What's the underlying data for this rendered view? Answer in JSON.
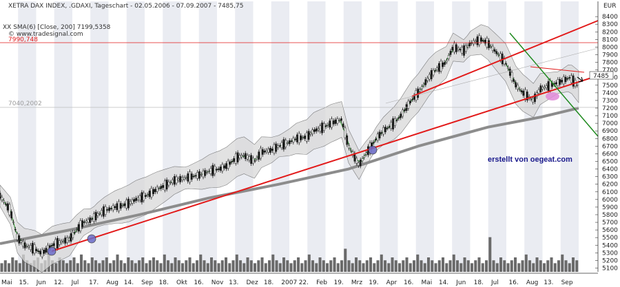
{
  "header": {
    "title": "XETRA DAX INDEX, .GDAXI, Tageschart - 02.05.2006 - 07.09.2007 - 7485,75",
    "sma_label": "XX SMA(6) [Close, 200] 7199,5358",
    "watermark": "© www.tradesignal.com",
    "currency": "EUR"
  },
  "annotations": {
    "author_note": "erstellt von oegeat.com",
    "last_price_label": "7485",
    "ref_line_high": "7990,748",
    "ref_line_low": "7040,2002"
  },
  "colors": {
    "background": "#ffffff",
    "band_stripe": "#d8dde8",
    "candle": "#1a1a1a",
    "bollinger_fill": "#d9d9d9",
    "sma6": "#1f8a1f",
    "sma200": "#8c8c8c",
    "trendline_support": "#e21a1a",
    "trendline_down": "#1f8a1f",
    "touch_marker": "#6b6bc8",
    "touch_marker_pink": "#e08ad8",
    "volume": "#6a6a6a"
  },
  "chart_data": {
    "type": "line",
    "title": "XETRA DAX INDEX, .GDAXI, Tageschart - 02.05.2006 - 07.09.2007 - 7485,75",
    "ylabel": "EUR",
    "xlabel": "",
    "ylim": [
      5050,
      8600
    ],
    "x_tick_labels": [
      "Mai",
      "15.",
      "Jun",
      "12.",
      "Jul",
      "17.",
      "Aug",
      "14.",
      "Sep",
      "18.",
      "Okt",
      "16.",
      "Nov",
      "13.",
      "Dez",
      "18.",
      "2007",
      "22.",
      "Feb",
      "19.",
      "Mrz",
      "19.",
      "Apr",
      "16.",
      "Mai",
      "14.",
      "Jun",
      "18.",
      "Jul",
      "16.",
      "Aug",
      "13.",
      "Sep"
    ],
    "y_ticks": [
      5100,
      5200,
      5300,
      5400,
      5500,
      5600,
      5700,
      5800,
      5900,
      6000,
      6100,
      6200,
      6300,
      6400,
      6500,
      6600,
      6700,
      6800,
      6900,
      7000,
      7100,
      7200,
      7300,
      7400,
      7500,
      7600,
      7700,
      7800,
      7900,
      8000,
      8100,
      8200,
      8300,
      8400
    ],
    "grid": false,
    "legend": "top-left",
    "series": [
      {
        "name": "XETRA DAX INDEX",
        "x": [
          0,
          6,
          10,
          14,
          20,
          24,
          30,
          36,
          40,
          44,
          48,
          52,
          56,
          60,
          66,
          70,
          74,
          78,
          84,
          90,
          96,
          100,
          106,
          110,
          116,
          120,
          126,
          130,
          136,
          140,
          146,
          150,
          156,
          160,
          166,
          170,
          176,
          180,
          186,
          190,
          196,
          200,
          206,
          210,
          216,
          220,
          226,
          230,
          236,
          240,
          246,
          250,
          256,
          260,
          266,
          270,
          276,
          280,
          286,
          290,
          296,
          300,
          306,
          310,
          316,
          322,
          327,
          332
        ],
        "values": [
          6050,
          5850,
          5500,
          5400,
          5350,
          5290,
          5400,
          5450,
          5480,
          5600,
          5700,
          5730,
          5800,
          5850,
          5900,
          5920,
          5950,
          6000,
          6050,
          6130,
          6200,
          6250,
          6280,
          6300,
          6330,
          6370,
          6400,
          6440,
          6550,
          6580,
          6500,
          6620,
          6650,
          6700,
          6750,
          6800,
          6820,
          6900,
          6950,
          7000,
          7050,
          6700,
          6450,
          6600,
          6800,
          6900,
          7000,
          7100,
          7300,
          7400,
          7600,
          7700,
          7800,
          8000,
          7950,
          8050,
          8100,
          8050,
          7900,
          7800,
          7500,
          7400,
          7300,
          7450,
          7500,
          7550,
          7600,
          7480
        ]
      },
      {
        "name": "SMA(6) [Close, 200]",
        "x": [
          0,
          40,
          80,
          120,
          160,
          200,
          240,
          280,
          310,
          332
        ],
        "values": [
          5420,
          5600,
          5800,
          6020,
          6200,
          6400,
          6700,
          6950,
          7080,
          7200
        ]
      }
    ],
    "volume": [
      3,
      4,
      3,
      5,
      4,
      3,
      6,
      4,
      3,
      4,
      5,
      3,
      4,
      6,
      4,
      3,
      5,
      4,
      3,
      4,
      5,
      3,
      6,
      4,
      3,
      5,
      4,
      3,
      4,
      5,
      3,
      4,
      6,
      4,
      3,
      5,
      4,
      3,
      4,
      5,
      3,
      4,
      5,
      4,
      3,
      6,
      4,
      3,
      5,
      4,
      3,
      4,
      5,
      3,
      4,
      6,
      4,
      3,
      5,
      4,
      3,
      4,
      5,
      3,
      4,
      6,
      4,
      3,
      5,
      4,
      3,
      4,
      5,
      3,
      4,
      6,
      4,
      3,
      5,
      4,
      3,
      4,
      5,
      3,
      4,
      6,
      4,
      3,
      5,
      4,
      3,
      4,
      5,
      3,
      4,
      8,
      4,
      3,
      5,
      4,
      3,
      4,
      5,
      3,
      4,
      6,
      4,
      3,
      5,
      4,
      3,
      4,
      5,
      3,
      4,
      6,
      4,
      3,
      5,
      4,
      3,
      4,
      5,
      3,
      4,
      6,
      4,
      3,
      5,
      4,
      3,
      4,
      5,
      3,
      4,
      12,
      4,
      3,
      5,
      4,
      3,
      4,
      5,
      3,
      4,
      6,
      4,
      3,
      5,
      4,
      3,
      4,
      5,
      3,
      4,
      6,
      4,
      3,
      5,
      4
    ]
  }
}
